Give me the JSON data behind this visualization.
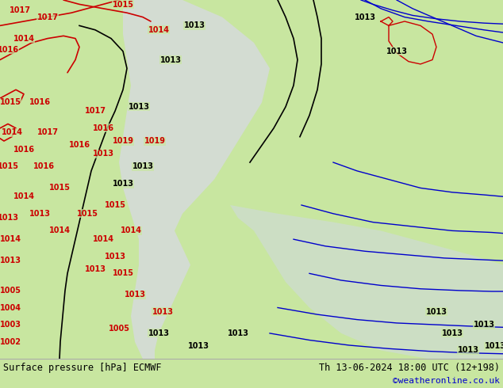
{
  "title_left": "Surface pressure [hPa] ECMWF",
  "title_right": "Th 13-06-2024 18:00 UTC (12+198)",
  "credit": "©weatheronline.co.uk",
  "bg_color": "#c8e6a0",
  "border_color": "#aaaaaa",
  "bottom_bar_color": "#000000",
  "bottom_bar_bg": "#ffffff",
  "text_color_left": "#000000",
  "text_color_right": "#000000",
  "credit_color": "#0000cc",
  "font_size_bottom": 9,
  "fig_width": 6.34,
  "fig_height": 4.9,
  "dpi": 100
}
